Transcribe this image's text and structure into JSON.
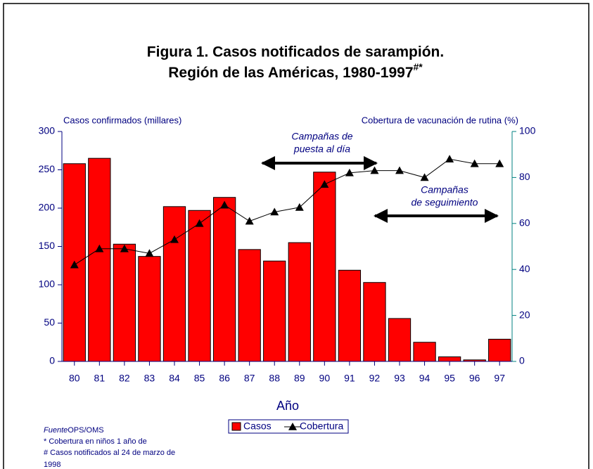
{
  "chart_data": {
    "type": "bar",
    "title": "Figura 1. Casos notificados de sarampión.",
    "subtitle": "Región de las Américas, 1980-1997",
    "subtitle_mark": "#*",
    "y_label": "Casos confirmados (millares)",
    "y2_label": "Cobertura de vacunación de rutina (%)",
    "x_label": "Año",
    "categories": [
      "80",
      "81",
      "82",
      "83",
      "84",
      "85",
      "86",
      "87",
      "88",
      "89",
      "90",
      "91",
      "92",
      "93",
      "94",
      "95",
      "96",
      "97"
    ],
    "series": [
      {
        "name": "Casos",
        "type": "bar",
        "color": "#ff0000",
        "values": [
          258,
          265,
          153,
          137,
          202,
          197,
          214,
          146,
          131,
          155,
          247,
          119,
          103,
          56,
          25,
          6,
          2,
          29
        ]
      },
      {
        "name": "Cobertura",
        "type": "line",
        "axis": "y2",
        "color": "#000000",
        "values": [
          42,
          49,
          49,
          47,
          53,
          60,
          68,
          61,
          65,
          67,
          77,
          82,
          83,
          83,
          80,
          88,
          86,
          86
        ]
      }
    ],
    "ylim": [
      0,
      300
    ],
    "yticks": [
      0,
      50,
      100,
      150,
      200,
      250,
      300
    ],
    "y2lim": [
      0,
      100
    ],
    "y2ticks": [
      0,
      20,
      40,
      60,
      80,
      100
    ],
    "annotations": [
      {
        "lines": [
          "Campañas de",
          "puesta al día"
        ]
      },
      {
        "lines": [
          "Campañas",
          "de seguimiento"
        ]
      }
    ],
    "source_label": "Fuente",
    "source": "OPS/OMS",
    "notes": [
      "* Cobertura en niños 1 año de",
      "# Casos notificados al 24 de marzo de",
      "1998"
    ],
    "legend": "bottom"
  }
}
